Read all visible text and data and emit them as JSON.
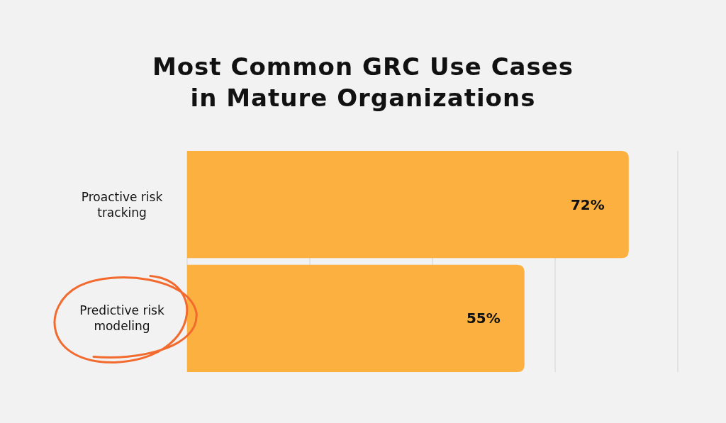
{
  "chart_data": {
    "type": "bar",
    "orientation": "horizontal",
    "title": "Most Common GRC Use Cases in Mature Organizations",
    "categories": [
      "Proactive risk tracking",
      "Predictive risk modeling"
    ],
    "values": [
      72,
      55
    ],
    "color": "#fbb040",
    "data_labels": true,
    "value_labels": [
      "72%",
      "55%"
    ],
    "xlim": [
      0,
      80
    ],
    "xticks": [
      {
        "value": 0,
        "label": null
      },
      {
        "value": 20,
        "label": null
      },
      {
        "value": 40,
        "label": null
      },
      {
        "value": 60,
        "label": null
      },
      {
        "value": 80,
        "label": null
      }
    ],
    "grid": "x",
    "tick_labels": "y"
  }
}
